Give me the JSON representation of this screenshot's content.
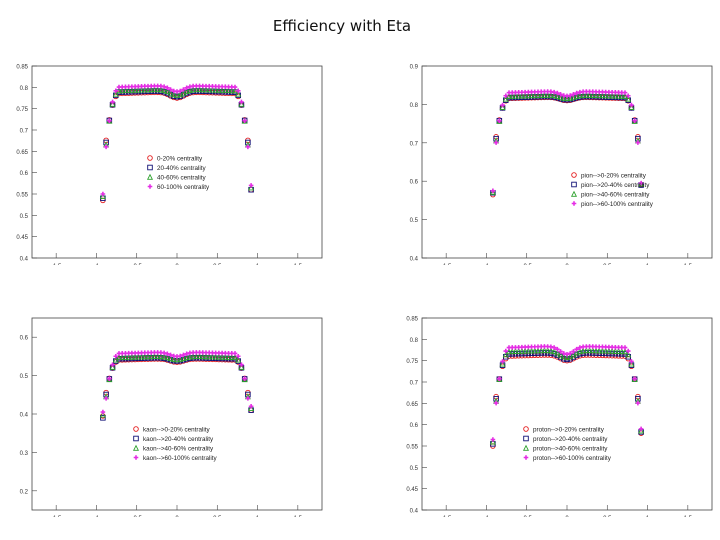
{
  "page": {
    "title": "Efficiency with Eta"
  },
  "colors": {
    "series": [
      "#e41a1c",
      "#111177",
      "#2ca02c",
      "#e52ee5"
    ],
    "frame": "#444444",
    "background": "#ffffff"
  },
  "chart_data": [
    {
      "type": "scatter",
      "title": "",
      "xlabel": "",
      "ylabel": "",
      "xlim": [
        -1.8,
        1.8
      ],
      "ylim": [
        0.4,
        0.85
      ],
      "xticks": [
        "-1.5",
        "-1",
        "-0.5",
        "0",
        "0.5",
        "1",
        "1.5"
      ],
      "yticks": [
        "0.4",
        "0.45",
        "0.5",
        "0.55",
        "0.6",
        "0.65",
        "0.7",
        "0.75",
        "0.8",
        "0.85"
      ],
      "legend": [
        "0-20% centrality",
        "20-40% centrality",
        "40-60% centrality",
        "60-100% centrality"
      ],
      "legend_position": "center",
      "series": [
        {
          "name": "0-20% centrality",
          "plateau": 0.79,
          "dip": 0.775,
          "edge": 0.68,
          "outlier": 0.535,
          "right_outlier": 0.56
        },
        {
          "name": "20-40% centrality",
          "plateau": 0.793,
          "dip": 0.778,
          "edge": 0.675,
          "outlier": 0.54,
          "right_outlier": 0.56
        },
        {
          "name": "40-60% centrality",
          "plateau": 0.797,
          "dip": 0.782,
          "edge": 0.67,
          "outlier": 0.545,
          "right_outlier": 0.565
        },
        {
          "name": "60-100% centrality",
          "plateau": 0.805,
          "dip": 0.79,
          "edge": 0.665,
          "outlier": 0.55,
          "right_outlier": 0.57
        }
      ]
    },
    {
      "type": "scatter",
      "title": "",
      "xlabel": "",
      "ylabel": "",
      "xlim": [
        -1.8,
        1.8
      ],
      "ylim": [
        0.4,
        0.9
      ],
      "xticks": [
        "-1.5",
        "-1",
        "-0.5",
        "0",
        "0.5",
        "1",
        "1.5"
      ],
      "yticks": [
        "0.4",
        "0.5",
        "0.6",
        "0.7",
        "0.8",
        "0.9"
      ],
      "legend": [
        "pion-->0-20% centrality",
        "pion-->20-40% centrality",
        "pion-->40-60% centrality",
        "pion-->60-100% centrality"
      ],
      "legend_position": "bottom-right",
      "series": [
        {
          "name": "pion-->0-20% centrality",
          "plateau": 0.82,
          "dip": 0.81,
          "edge": 0.72,
          "outlier": 0.565,
          "right_outlier": 0.59
        },
        {
          "name": "pion-->20-40% centrality",
          "plateau": 0.822,
          "dip": 0.812,
          "edge": 0.715,
          "outlier": 0.57,
          "right_outlier": 0.59
        },
        {
          "name": "pion-->40-60% centrality",
          "plateau": 0.826,
          "dip": 0.816,
          "edge": 0.71,
          "outlier": 0.572,
          "right_outlier": 0.593
        },
        {
          "name": "pion-->60-100% centrality",
          "plateau": 0.835,
          "dip": 0.822,
          "edge": 0.705,
          "outlier": 0.575,
          "right_outlier": 0.595
        }
      ]
    },
    {
      "type": "scatter",
      "title": "",
      "xlabel": "",
      "ylabel": "",
      "xlim": [
        -1.8,
        1.8
      ],
      "ylim": [
        0.15,
        0.65
      ],
      "xticks": [
        "-1.5",
        "-1",
        "-0.5",
        "0",
        "0.5",
        "1",
        "1.5"
      ],
      "yticks": [
        "0.2",
        "0.3",
        "0.4",
        "0.5",
        "0.6"
      ],
      "legend": [
        "kaon-->0-20% centrality",
        "kaon-->20-40% centrality",
        "kaon-->40-60% centrality",
        "kaon-->60-100% centrality"
      ],
      "legend_position": "bottom-center",
      "series": [
        {
          "name": "kaon-->0-20% centrality",
          "plateau": 0.545,
          "dip": 0.535,
          "edge": 0.46,
          "outlier": 0.395,
          "right_outlier": 0.41
        },
        {
          "name": "kaon-->20-40% centrality",
          "plateau": 0.548,
          "dip": 0.538,
          "edge": 0.455,
          "outlier": 0.39,
          "right_outlier": 0.41
        },
        {
          "name": "kaon-->40-60% centrality",
          "plateau": 0.552,
          "dip": 0.542,
          "edge": 0.45,
          "outlier": 0.398,
          "right_outlier": 0.415
        },
        {
          "name": "kaon-->60-100% centrality",
          "plateau": 0.562,
          "dip": 0.55,
          "edge": 0.445,
          "outlier": 0.405,
          "right_outlier": 0.42
        }
      ]
    },
    {
      "type": "scatter",
      "title": "",
      "xlabel": "",
      "ylabel": "",
      "xlim": [
        -1.8,
        1.8
      ],
      "ylim": [
        0.4,
        0.85
      ],
      "xticks": [
        "-1.5",
        "-1",
        "-0.5",
        "0",
        "0.5",
        "1",
        "1.5"
      ],
      "yticks": [
        "0.4",
        "0.45",
        "0.5",
        "0.55",
        "0.6",
        "0.65",
        "0.7",
        "0.75",
        "0.8",
        "0.85"
      ],
      "legend": [
        "proton-->0-20% centrality",
        "proton-->20-40% centrality",
        "proton-->40-60% centrality",
        "proton-->60-100% centrality"
      ],
      "legend_position": "bottom-center",
      "series": [
        {
          "name": "proton-->0-20% centrality",
          "plateau": 0.765,
          "dip": 0.75,
          "edge": 0.67,
          "outlier": 0.55,
          "right_outlier": 0.58
        },
        {
          "name": "proton-->20-40% centrality",
          "plateau": 0.77,
          "dip": 0.753,
          "edge": 0.665,
          "outlier": 0.555,
          "right_outlier": 0.583
        },
        {
          "name": "proton-->40-60% centrality",
          "plateau": 0.776,
          "dip": 0.758,
          "edge": 0.66,
          "outlier": 0.56,
          "right_outlier": 0.586
        },
        {
          "name": "proton-->60-100% centrality",
          "plateau": 0.785,
          "dip": 0.765,
          "edge": 0.655,
          "outlier": 0.565,
          "right_outlier": 0.59
        }
      ]
    }
  ]
}
